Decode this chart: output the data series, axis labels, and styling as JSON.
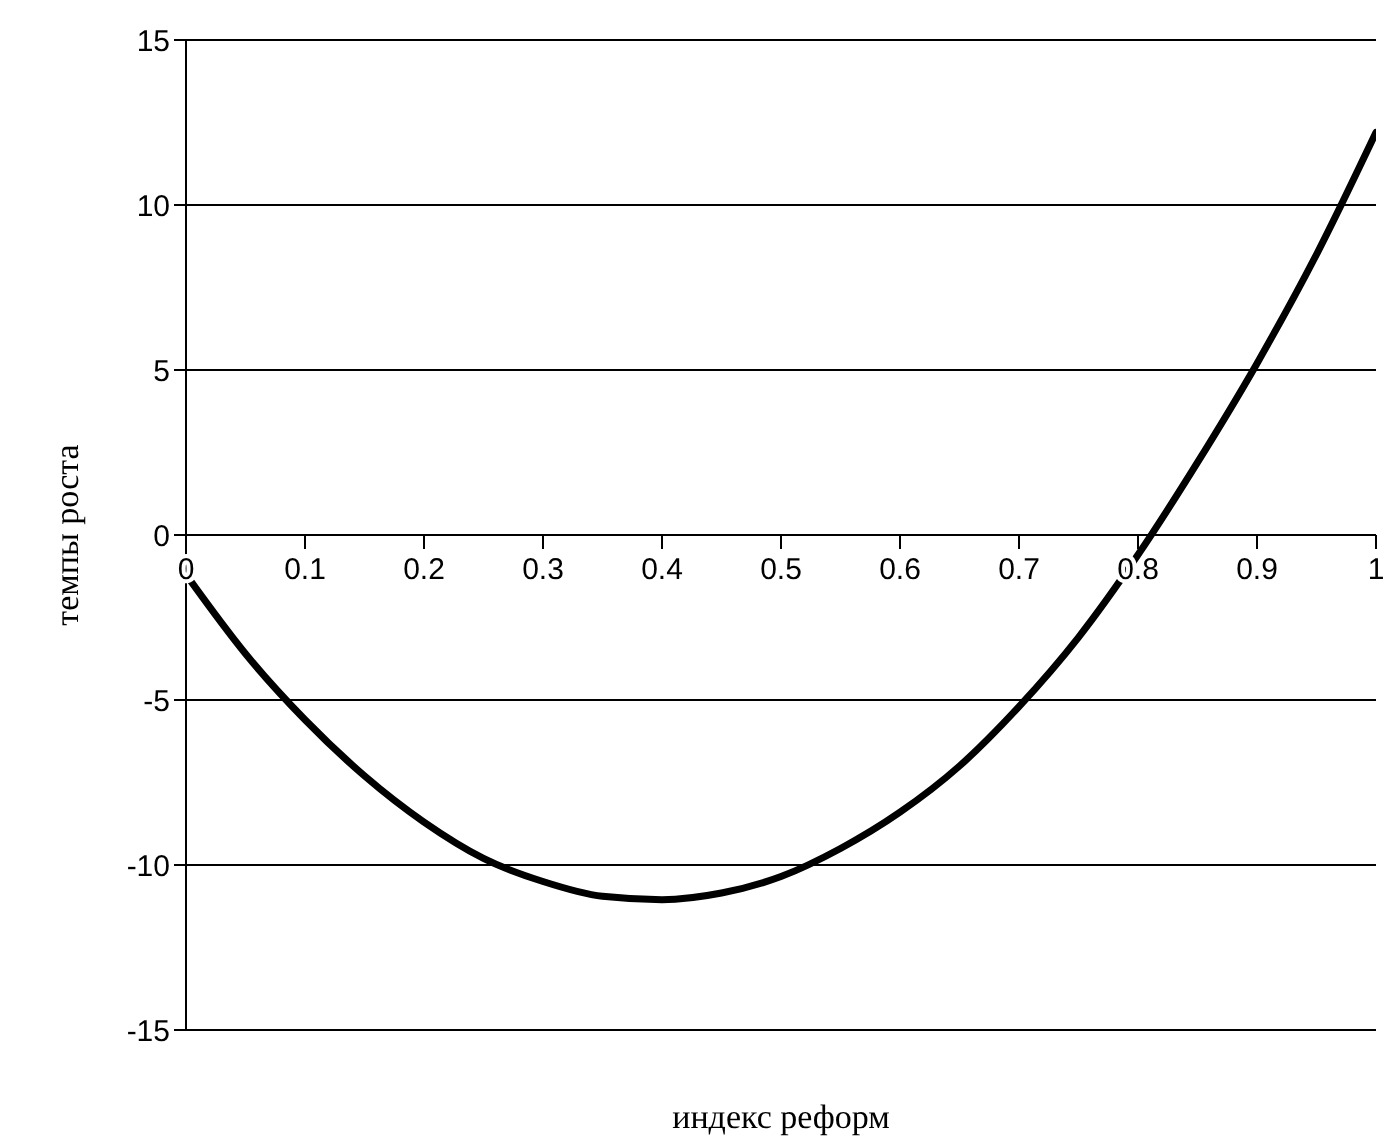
{
  "chart_data": {
    "type": "line",
    "xlabel": "индекс реформ",
    "ylabel": "темпы роста",
    "x": [
      0,
      0.05,
      0.1,
      0.15,
      0.2,
      0.25,
      0.3,
      0.35,
      0.4,
      0.45,
      0.5,
      0.55,
      0.6,
      0.65,
      0.7,
      0.75,
      0.8,
      0.85,
      0.9,
      0.95,
      1
    ],
    "series": [
      {
        "color": "#000000",
        "values": [
          -1.2,
          -3.6,
          -5.6,
          -7.3,
          -8.7,
          -9.8,
          -10.5,
          -10.95,
          -11.05,
          -10.85,
          -10.35,
          -9.5,
          -8.4,
          -7.0,
          -5.2,
          -3.1,
          -0.6,
          2.2,
          5.2,
          8.5,
          12.2
        ]
      }
    ],
    "xlim": [
      0,
      1
    ],
    "xticks": [
      0,
      0.1,
      0.2,
      0.3,
      0.4,
      0.5,
      0.6,
      0.7,
      0.8,
      0.9,
      1
    ],
    "ylim": [
      -15,
      15
    ],
    "yticks": [
      -15,
      -10,
      -5,
      0,
      5,
      10,
      15
    ],
    "grid": "y",
    "legend": false,
    "marker": "none",
    "line_style": "solid"
  }
}
